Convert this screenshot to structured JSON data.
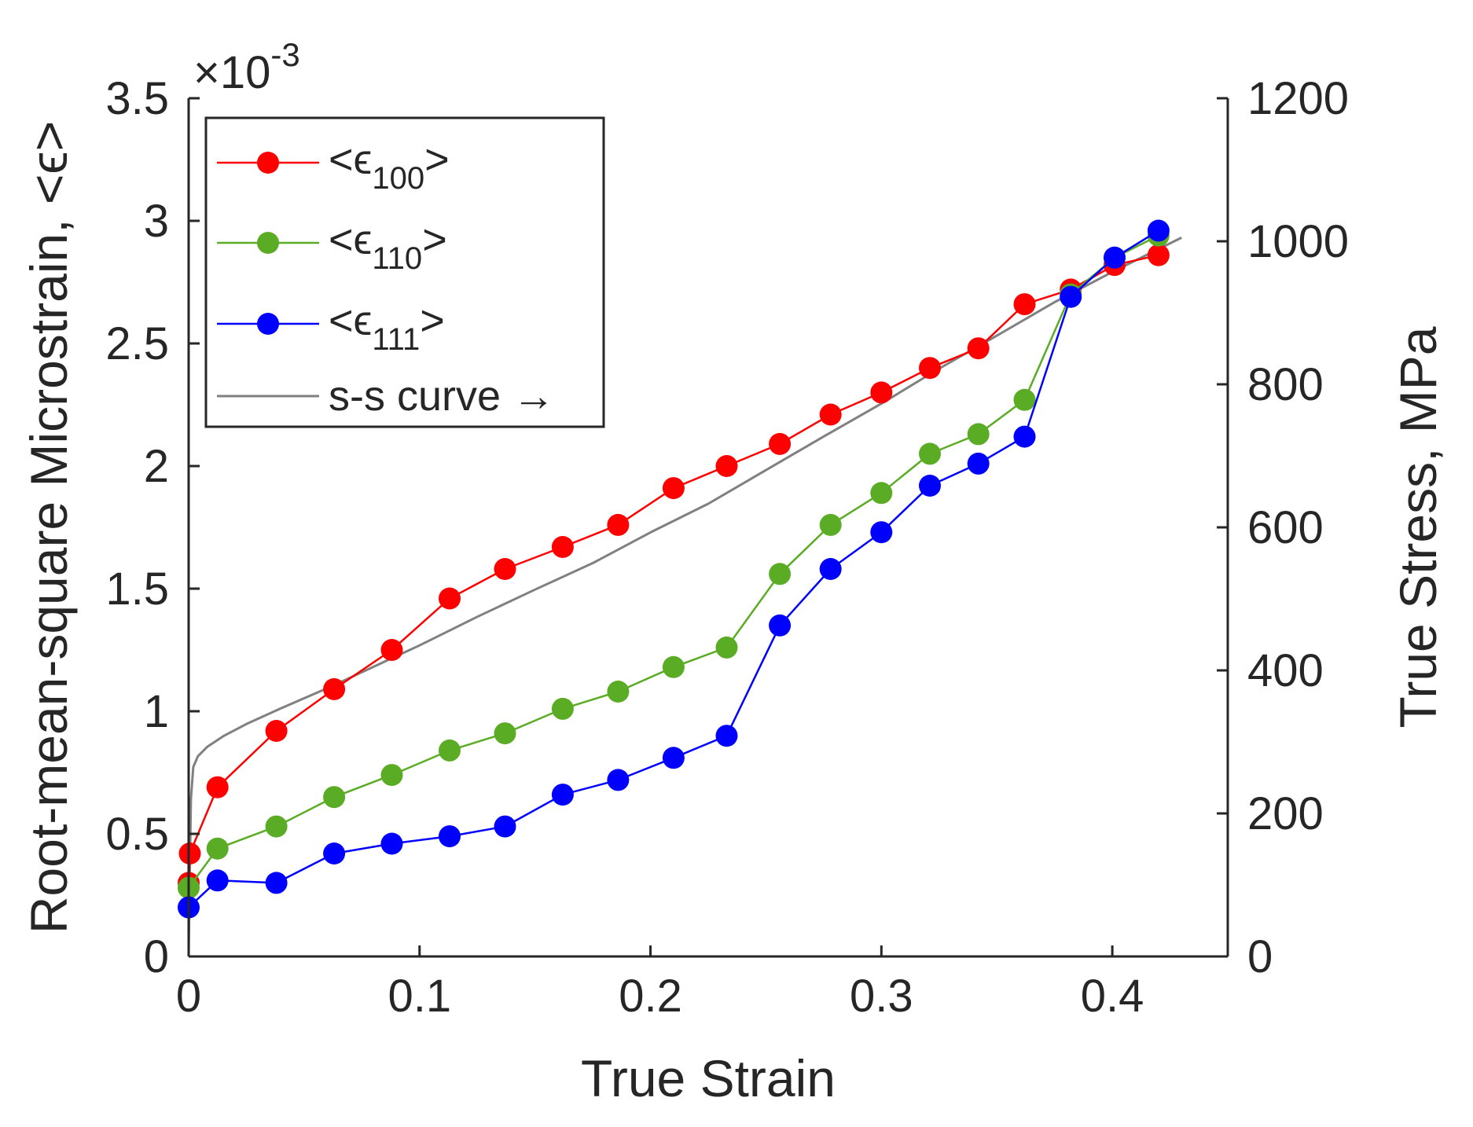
{
  "chart_data": {
    "type": "line",
    "title": "",
    "xlabel": "True Strain",
    "ylabel": "Root-mean-square Microstrain, <ϵ>",
    "y2label": "True Stress, MPa",
    "y_exponent_base": "×10",
    "y_exponent_power": "-3",
    "xlim": [
      0,
      0.45
    ],
    "ylim": [
      0,
      3.5
    ],
    "y2lim": [
      0,
      1200
    ],
    "xticks": [
      0,
      0.1,
      0.2,
      0.3,
      0.4
    ],
    "xtick_labels": [
      "0",
      "0.1",
      "0.2",
      "0.3",
      "0.4"
    ],
    "yticks": [
      0,
      0.5,
      1,
      1.5,
      2,
      2.5,
      3,
      3.5
    ],
    "ytick_labels": [
      "0",
      "0.5",
      "1",
      "1.5",
      "2",
      "2.5",
      "3",
      "3.5"
    ],
    "y2ticks": [
      0,
      200,
      400,
      600,
      800,
      1000,
      1200
    ],
    "y2tick_labels": [
      "0",
      "200",
      "400",
      "600",
      "800",
      "1000",
      "1200"
    ],
    "grid": false,
    "legend_position": "top-left",
    "series": [
      {
        "name": "<ϵ100>",
        "legend_main": "<ϵ",
        "legend_sub": "100",
        "legend_close": ">",
        "color": "#ff0000",
        "marker": "circle",
        "axis": "left",
        "x": [
          0,
          0.0005,
          0.0125,
          0.038,
          0.063,
          0.088,
          0.113,
          0.137,
          0.162,
          0.186,
          0.21,
          0.233,
          0.256,
          0.278,
          0.3,
          0.321,
          0.342,
          0.362,
          0.382,
          0.401,
          0.42
        ],
        "y": [
          0.3,
          0.42,
          0.69,
          0.92,
          1.09,
          1.25,
          1.46,
          1.58,
          1.67,
          1.76,
          1.91,
          2.0,
          2.09,
          2.21,
          2.3,
          2.4,
          2.48,
          2.66,
          2.72,
          2.82,
          2.86
        ]
      },
      {
        "name": "<ϵ110>",
        "legend_main": "<ϵ",
        "legend_sub": "110",
        "legend_close": ">",
        "color": "#5aac24",
        "marker": "circle",
        "axis": "left",
        "x": [
          0,
          0.0125,
          0.038,
          0.063,
          0.088,
          0.113,
          0.137,
          0.162,
          0.186,
          0.21,
          0.233,
          0.256,
          0.278,
          0.3,
          0.321,
          0.342,
          0.362,
          0.382,
          0.401,
          0.42
        ],
        "y": [
          0.28,
          0.44,
          0.53,
          0.65,
          0.74,
          0.84,
          0.91,
          1.01,
          1.08,
          1.18,
          1.26,
          1.56,
          1.76,
          1.89,
          2.05,
          2.13,
          2.27,
          2.7,
          2.85,
          2.94
        ]
      },
      {
        "name": "<ϵ111>",
        "legend_main": "<ϵ",
        "legend_sub": "111",
        "legend_close": ">",
        "color": "#0000ff",
        "marker": "circle",
        "axis": "left",
        "x": [
          0,
          0.0125,
          0.038,
          0.063,
          0.088,
          0.113,
          0.137,
          0.162,
          0.186,
          0.21,
          0.233,
          0.256,
          0.278,
          0.3,
          0.321,
          0.342,
          0.362,
          0.382,
          0.401,
          0.42
        ],
        "y": [
          0.2,
          0.31,
          0.3,
          0.42,
          0.46,
          0.49,
          0.53,
          0.66,
          0.72,
          0.81,
          0.9,
          1.35,
          1.58,
          1.73,
          1.92,
          2.01,
          2.12,
          2.69,
          2.85,
          2.96
        ]
      },
      {
        "name": "s-s curve →",
        "legend_main": "s-s curve →",
        "color": "#808080",
        "marker": "none",
        "axis": "right",
        "x": [
          0,
          0.0005,
          0.001,
          0.002,
          0.004,
          0.008,
          0.015,
          0.025,
          0.04,
          0.06,
          0.08,
          0.1,
          0.125,
          0.15,
          0.175,
          0.2,
          0.225,
          0.25,
          0.275,
          0.3,
          0.325,
          0.35,
          0.375,
          0.4,
          0.43
        ],
        "y": [
          0,
          120,
          220,
          265,
          280,
          293,
          308,
          325,
          347,
          375,
          405,
          435,
          475,
          513,
          550,
          593,
          633,
          680,
          727,
          773,
          822,
          868,
          915,
          957,
          1005
        ]
      }
    ]
  }
}
